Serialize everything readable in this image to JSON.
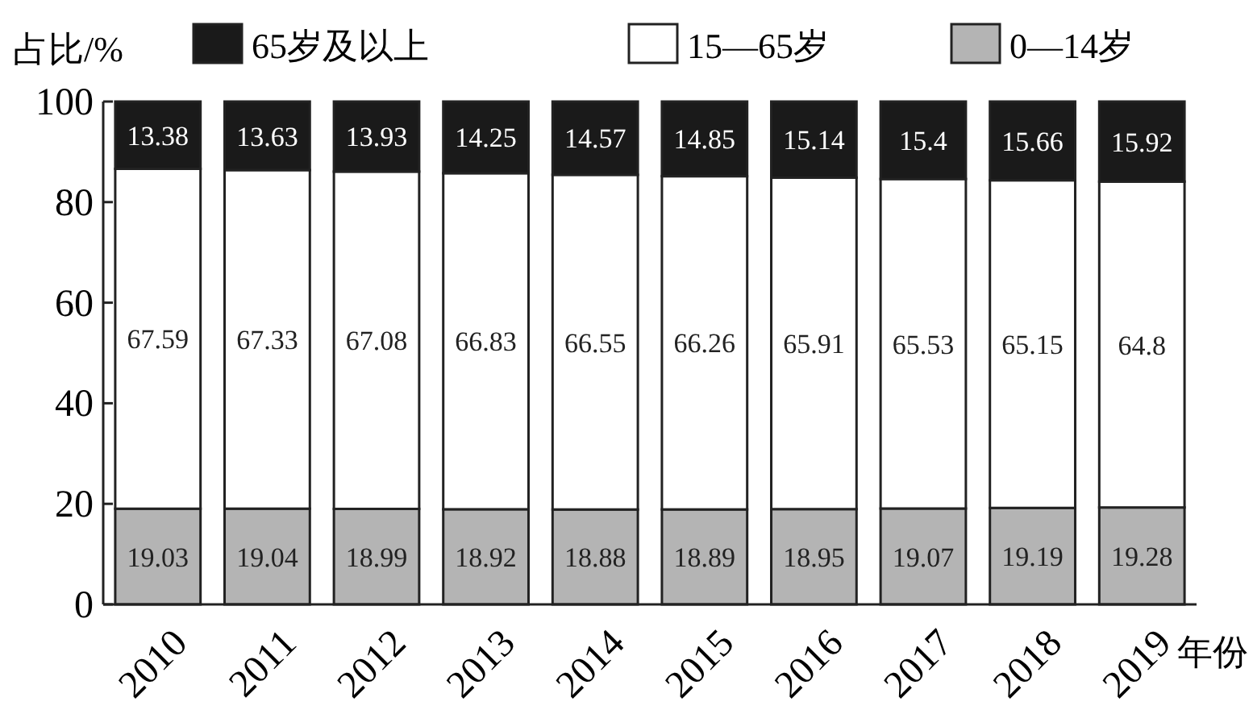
{
  "chart_data": {
    "type": "bar",
    "stacked": true,
    "ylabel": "占比/%",
    "xlabel": "年份",
    "categories": [
      "2010",
      "2011",
      "2012",
      "2013",
      "2014",
      "2015",
      "2016",
      "2017",
      "2018",
      "2019"
    ],
    "series": [
      {
        "name": "0—14岁",
        "color": "#b4b4b4",
        "values": [
          19.03,
          19.04,
          18.99,
          18.92,
          18.88,
          18.89,
          18.95,
          19.07,
          19.19,
          19.28
        ]
      },
      {
        "name": "15—65岁",
        "color": "#ffffff",
        "values": [
          67.59,
          67.33,
          67.08,
          66.83,
          66.55,
          66.26,
          65.91,
          65.53,
          65.15,
          64.8
        ]
      },
      {
        "name": "65岁及以上",
        "color": "#1a1a1a",
        "values": [
          13.38,
          13.63,
          13.93,
          14.25,
          14.57,
          14.85,
          15.14,
          15.4,
          15.66,
          15.92
        ]
      }
    ],
    "ylim": [
      0,
      100
    ],
    "yticks": [
      0,
      20,
      40,
      60,
      80,
      100
    ],
    "data_labels": true,
    "legend": "top",
    "grid": false
  }
}
